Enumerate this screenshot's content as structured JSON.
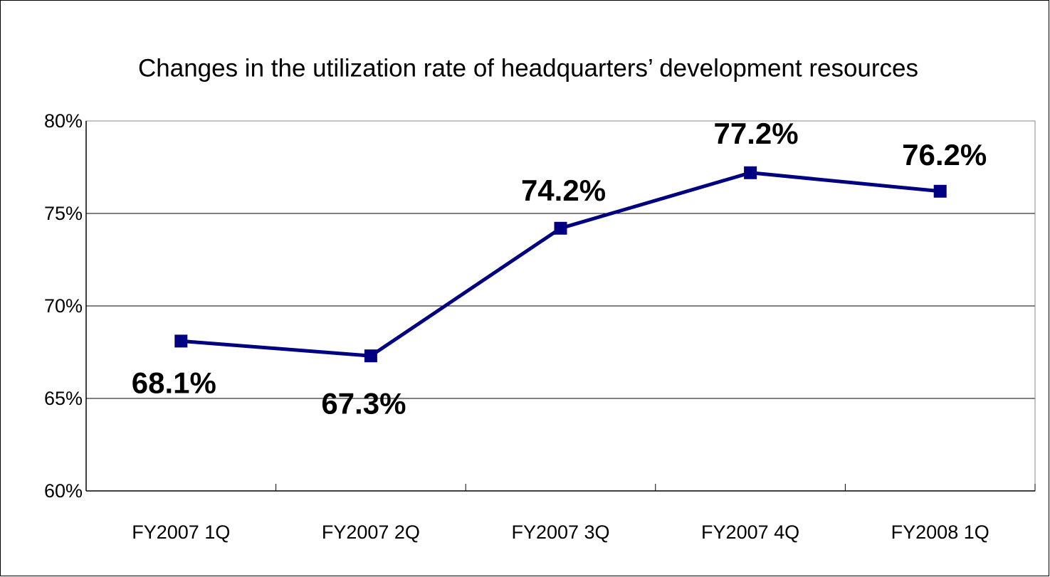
{
  "chart_data": {
    "type": "line",
    "title": "Changes in the utilization rate of headquarters’ development resources",
    "categories": [
      "FY2007 1Q",
      "FY2007 2Q",
      "FY2007 3Q",
      "FY2007 4Q",
      "FY2008 1Q"
    ],
    "series": [
      {
        "name": "Utilization rate",
        "color": "#000080",
        "values": [
          68.1,
          67.3,
          74.2,
          77.2,
          76.2
        ],
        "value_labels": [
          "68.1%",
          "67.3%",
          "74.2%",
          "77.2%",
          "76.2%"
        ]
      }
    ],
    "ylim": [
      60,
      80
    ],
    "yticks": [
      {
        "value": 60,
        "label": "60%"
      },
      {
        "value": 65,
        "label": "65%"
      },
      {
        "value": 70,
        "label": "70%"
      },
      {
        "value": 75,
        "label": "75%"
      },
      {
        "value": 80,
        "label": "80%"
      }
    ],
    "grid": true
  }
}
